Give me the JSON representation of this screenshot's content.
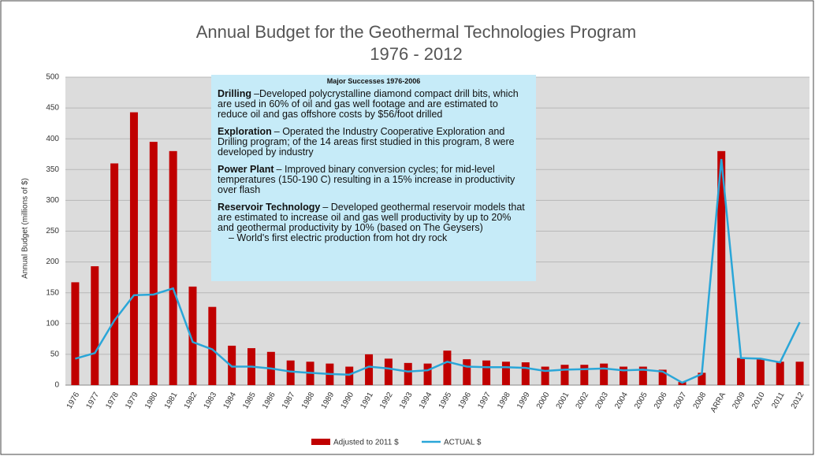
{
  "chart_data": {
    "type": "bar_line",
    "title": "Annual Budget for the Geothermal Technologies Program",
    "subtitle": "1976 - 2012",
    "y_label": "Annual Budget (millions of $)",
    "categories": [
      "1976",
      "1977",
      "1978",
      "1979",
      "1980",
      "1981",
      "1982",
      "1983",
      "1984",
      "1985",
      "1986",
      "1987",
      "1988",
      "1989",
      "1990",
      "1991",
      "1992",
      "1993",
      "1994",
      "1995",
      "1996",
      "1997",
      "1998",
      "1999",
      "2000",
      "2001",
      "2002",
      "2003",
      "2004",
      "2005",
      "2006",
      "2007",
      "2008",
      "ARRA",
      "2009",
      "2010",
      "2011",
      "2012"
    ],
    "series": [
      {
        "name": "Adjusted to 2011 $",
        "kind": "bar",
        "color": "#c00000",
        "values": [
          167,
          193,
          360,
          443,
          395,
          380,
          160,
          127,
          64,
          60,
          54,
          40,
          38,
          35,
          30,
          50,
          43,
          36,
          35,
          56,
          42,
          40,
          38,
          37,
          30,
          33,
          33,
          35,
          30,
          30,
          25,
          5,
          20,
          380,
          44,
          42,
          38,
          38
        ]
      },
      {
        "name": "ACTUAL $",
        "kind": "line",
        "color": "#2aa6d8",
        "values": [
          43,
          52,
          105,
          146,
          147,
          157,
          70,
          58,
          30,
          30,
          27,
          22,
          20,
          18,
          17,
          30,
          27,
          22,
          24,
          38,
          30,
          29,
          29,
          28,
          23,
          25,
          26,
          27,
          24,
          25,
          22,
          4,
          18,
          367,
          44,
          43,
          37,
          102
        ]
      }
    ],
    "ylim": [
      0,
      500
    ],
    "yticks": [
      0,
      50,
      100,
      150,
      200,
      250,
      300,
      350,
      400,
      450,
      500
    ],
    "grid": true,
    "legend": "bottom",
    "annotation": {
      "title": "Major Successes 1976-2006",
      "items": [
        {
          "lead": "Drilling",
          "text": "–Developed polycrystalline diamond compact drill bits, which are used in 60% of oil and gas well footage and are estimated to reduce oil and gas offshore costs by $56/foot drilled"
        },
        {
          "lead": "Exploration",
          "text": "– Operated the Industry Cooperative Exploration and Drilling program; of the 14 areas first studied in this program, 8 were developed by industry"
        },
        {
          "lead": "Power Plant",
          "text": "– Improved binary conversion cycles; for mid-level temperatures (150-190 C) resulting in a 15% increase in productivity over flash"
        },
        {
          "lead": "Reservoir Technology",
          "text": "– Developed geothermal reservoir models that are estimated to increase oil and gas well productivity by up to 20% and geothermal productivity by 10% (based on The Geysers)"
        }
      ],
      "note": "– World's first electric production from hot dry rock"
    }
  }
}
